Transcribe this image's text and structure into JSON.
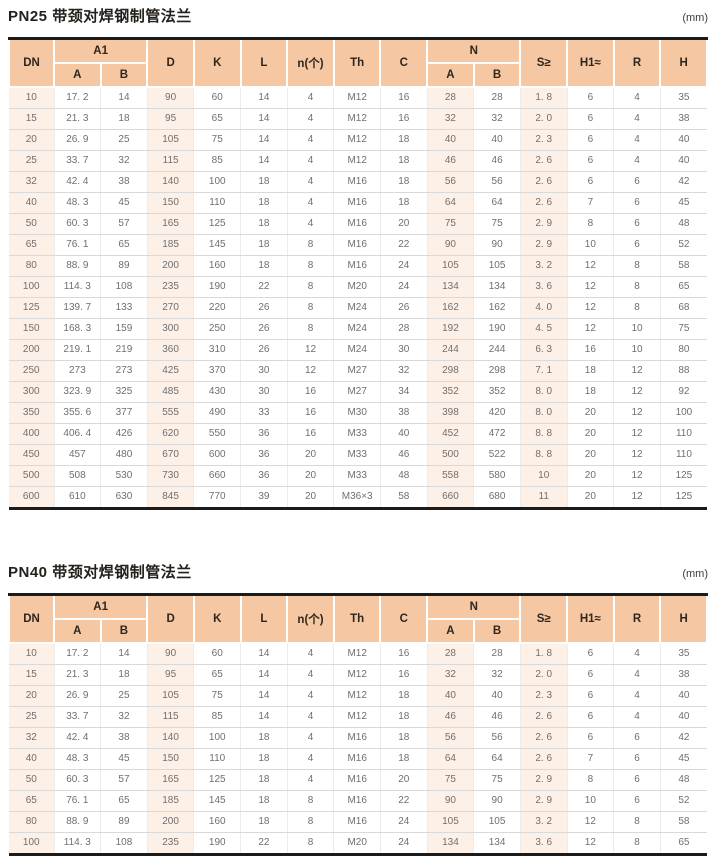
{
  "colors": {
    "header_bg": "#f5c7a3",
    "tint_bg": "#fdf0e7",
    "border_dark": "#1b1b1b"
  },
  "header": {
    "dn": "DN",
    "a1": "A1",
    "sub_a": "A",
    "sub_b": "B",
    "d": "D",
    "k": "K",
    "l": "L",
    "n_count": "n(个)",
    "th": "Th",
    "c": "C",
    "n": "N",
    "s_min": "S≥",
    "h1": "H1≈",
    "r": "R",
    "h": "H"
  },
  "tables": [
    {
      "title": "PN25 带颈对焊钢制管法兰",
      "unit": "(mm)",
      "rows": [
        [
          "10",
          "17. 2",
          "14",
          "90",
          "60",
          "14",
          "4",
          "M12",
          "16",
          "28",
          "28",
          "1. 8",
          "6",
          "4",
          "35"
        ],
        [
          "15",
          "21. 3",
          "18",
          "95",
          "65",
          "14",
          "4",
          "M12",
          "16",
          "32",
          "32",
          "2. 0",
          "6",
          "4",
          "38"
        ],
        [
          "20",
          "26. 9",
          "25",
          "105",
          "75",
          "14",
          "4",
          "M12",
          "18",
          "40",
          "40",
          "2. 3",
          "6",
          "4",
          "40"
        ],
        [
          "25",
          "33. 7",
          "32",
          "115",
          "85",
          "14",
          "4",
          "M12",
          "18",
          "46",
          "46",
          "2. 6",
          "6",
          "4",
          "40"
        ],
        [
          "32",
          "42. 4",
          "38",
          "140",
          "100",
          "18",
          "4",
          "M16",
          "18",
          "56",
          "56",
          "2. 6",
          "6",
          "6",
          "42"
        ],
        [
          "40",
          "48. 3",
          "45",
          "150",
          "110",
          "18",
          "4",
          "M16",
          "18",
          "64",
          "64",
          "2. 6",
          "7",
          "6",
          "45"
        ],
        [
          "50",
          "60. 3",
          "57",
          "165",
          "125",
          "18",
          "4",
          "M16",
          "20",
          "75",
          "75",
          "2. 9",
          "8",
          "6",
          "48"
        ],
        [
          "65",
          "76. 1",
          "65",
          "185",
          "145",
          "18",
          "8",
          "M16",
          "22",
          "90",
          "90",
          "2. 9",
          "10",
          "6",
          "52"
        ],
        [
          "80",
          "88. 9",
          "89",
          "200",
          "160",
          "18",
          "8",
          "M16",
          "24",
          "105",
          "105",
          "3. 2",
          "12",
          "8",
          "58"
        ],
        [
          "100",
          "114. 3",
          "108",
          "235",
          "190",
          "22",
          "8",
          "M20",
          "24",
          "134",
          "134",
          "3. 6",
          "12",
          "8",
          "65"
        ],
        [
          "125",
          "139. 7",
          "133",
          "270",
          "220",
          "26",
          "8",
          "M24",
          "26",
          "162",
          "162",
          "4. 0",
          "12",
          "8",
          "68"
        ],
        [
          "150",
          "168. 3",
          "159",
          "300",
          "250",
          "26",
          "8",
          "M24",
          "28",
          "192",
          "190",
          "4. 5",
          "12",
          "10",
          "75"
        ],
        [
          "200",
          "219. 1",
          "219",
          "360",
          "310",
          "26",
          "12",
          "M24",
          "30",
          "244",
          "244",
          "6. 3",
          "16",
          "10",
          "80"
        ],
        [
          "250",
          "273",
          "273",
          "425",
          "370",
          "30",
          "12",
          "M27",
          "32",
          "298",
          "298",
          "7. 1",
          "18",
          "12",
          "88"
        ],
        [
          "300",
          "323. 9",
          "325",
          "485",
          "430",
          "30",
          "16",
          "M27",
          "34",
          "352",
          "352",
          "8. 0",
          "18",
          "12",
          "92"
        ],
        [
          "350",
          "355. 6",
          "377",
          "555",
          "490",
          "33",
          "16",
          "M30",
          "38",
          "398",
          "420",
          "8. 0",
          "20",
          "12",
          "100"
        ],
        [
          "400",
          "406. 4",
          "426",
          "620",
          "550",
          "36",
          "16",
          "M33",
          "40",
          "452",
          "472",
          "8. 8",
          "20",
          "12",
          "110"
        ],
        [
          "450",
          "457",
          "480",
          "670",
          "600",
          "36",
          "20",
          "M33",
          "46",
          "500",
          "522",
          "8. 8",
          "20",
          "12",
          "110"
        ],
        [
          "500",
          "508",
          "530",
          "730",
          "660",
          "36",
          "20",
          "M33",
          "48",
          "558",
          "580",
          "10",
          "20",
          "12",
          "125"
        ],
        [
          "600",
          "610",
          "630",
          "845",
          "770",
          "39",
          "20",
          "M36×3",
          "58",
          "660",
          "680",
          "11",
          "20",
          "12",
          "125"
        ]
      ]
    },
    {
      "title": "PN40 带颈对焊钢制管法兰",
      "unit": "(mm)",
      "rows": [
        [
          "10",
          "17. 2",
          "14",
          "90",
          "60",
          "14",
          "4",
          "M12",
          "16",
          "28",
          "28",
          "1. 8",
          "6",
          "4",
          "35"
        ],
        [
          "15",
          "21. 3",
          "18",
          "95",
          "65",
          "14",
          "4",
          "M12",
          "16",
          "32",
          "32",
          "2. 0",
          "6",
          "4",
          "38"
        ],
        [
          "20",
          "26. 9",
          "25",
          "105",
          "75",
          "14",
          "4",
          "M12",
          "18",
          "40",
          "40",
          "2. 3",
          "6",
          "4",
          "40"
        ],
        [
          "25",
          "33. 7",
          "32",
          "115",
          "85",
          "14",
          "4",
          "M12",
          "18",
          "46",
          "46",
          "2. 6",
          "6",
          "4",
          "40"
        ],
        [
          "32",
          "42. 4",
          "38",
          "140",
          "100",
          "18",
          "4",
          "M16",
          "18",
          "56",
          "56",
          "2. 6",
          "6",
          "6",
          "42"
        ],
        [
          "40",
          "48. 3",
          "45",
          "150",
          "110",
          "18",
          "4",
          "M16",
          "18",
          "64",
          "64",
          "2. 6",
          "7",
          "6",
          "45"
        ],
        [
          "50",
          "60. 3",
          "57",
          "165",
          "125",
          "18",
          "4",
          "M16",
          "20",
          "75",
          "75",
          "2. 9",
          "8",
          "6",
          "48"
        ],
        [
          "65",
          "76. 1",
          "65",
          "185",
          "145",
          "18",
          "8",
          "M16",
          "22",
          "90",
          "90",
          "2. 9",
          "10",
          "6",
          "52"
        ],
        [
          "80",
          "88. 9",
          "89",
          "200",
          "160",
          "18",
          "8",
          "M16",
          "24",
          "105",
          "105",
          "3. 2",
          "12",
          "8",
          "58"
        ],
        [
          "100",
          "114. 3",
          "108",
          "235",
          "190",
          "22",
          "8",
          "M20",
          "24",
          "134",
          "134",
          "3. 6",
          "12",
          "8",
          "65"
        ]
      ]
    }
  ]
}
